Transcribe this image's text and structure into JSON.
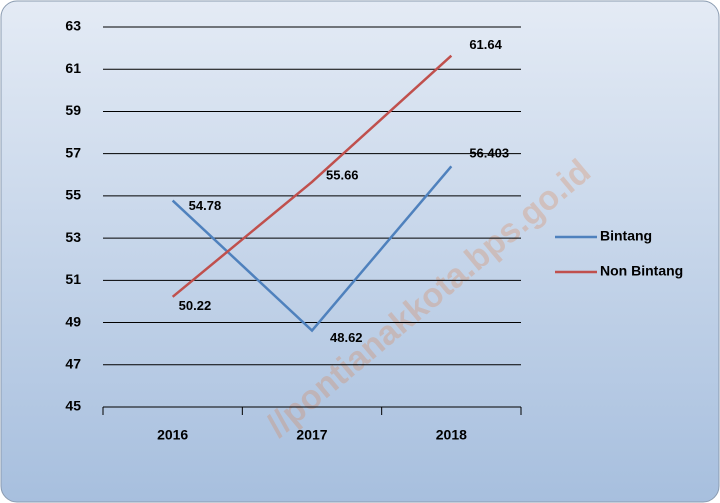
{
  "chart_data": {
    "type": "line",
    "categories": [
      "2016",
      "2017",
      "2018"
    ],
    "series": [
      {
        "name": "Bintang",
        "color": "#4f81bd",
        "values": [
          54.78,
          48.62,
          56.403
        ]
      },
      {
        "name": "Non Bintang",
        "color": "#c0504d",
        "values": [
          50.22,
          55.66,
          61.64
        ]
      }
    ],
    "ylim": [
      45,
      63
    ],
    "yticks": [
      45,
      47,
      49,
      51,
      53,
      55,
      57,
      59,
      61,
      63
    ],
    "grid": true,
    "legend": "right",
    "watermark": "//pontianakkota.bps.go.id"
  }
}
